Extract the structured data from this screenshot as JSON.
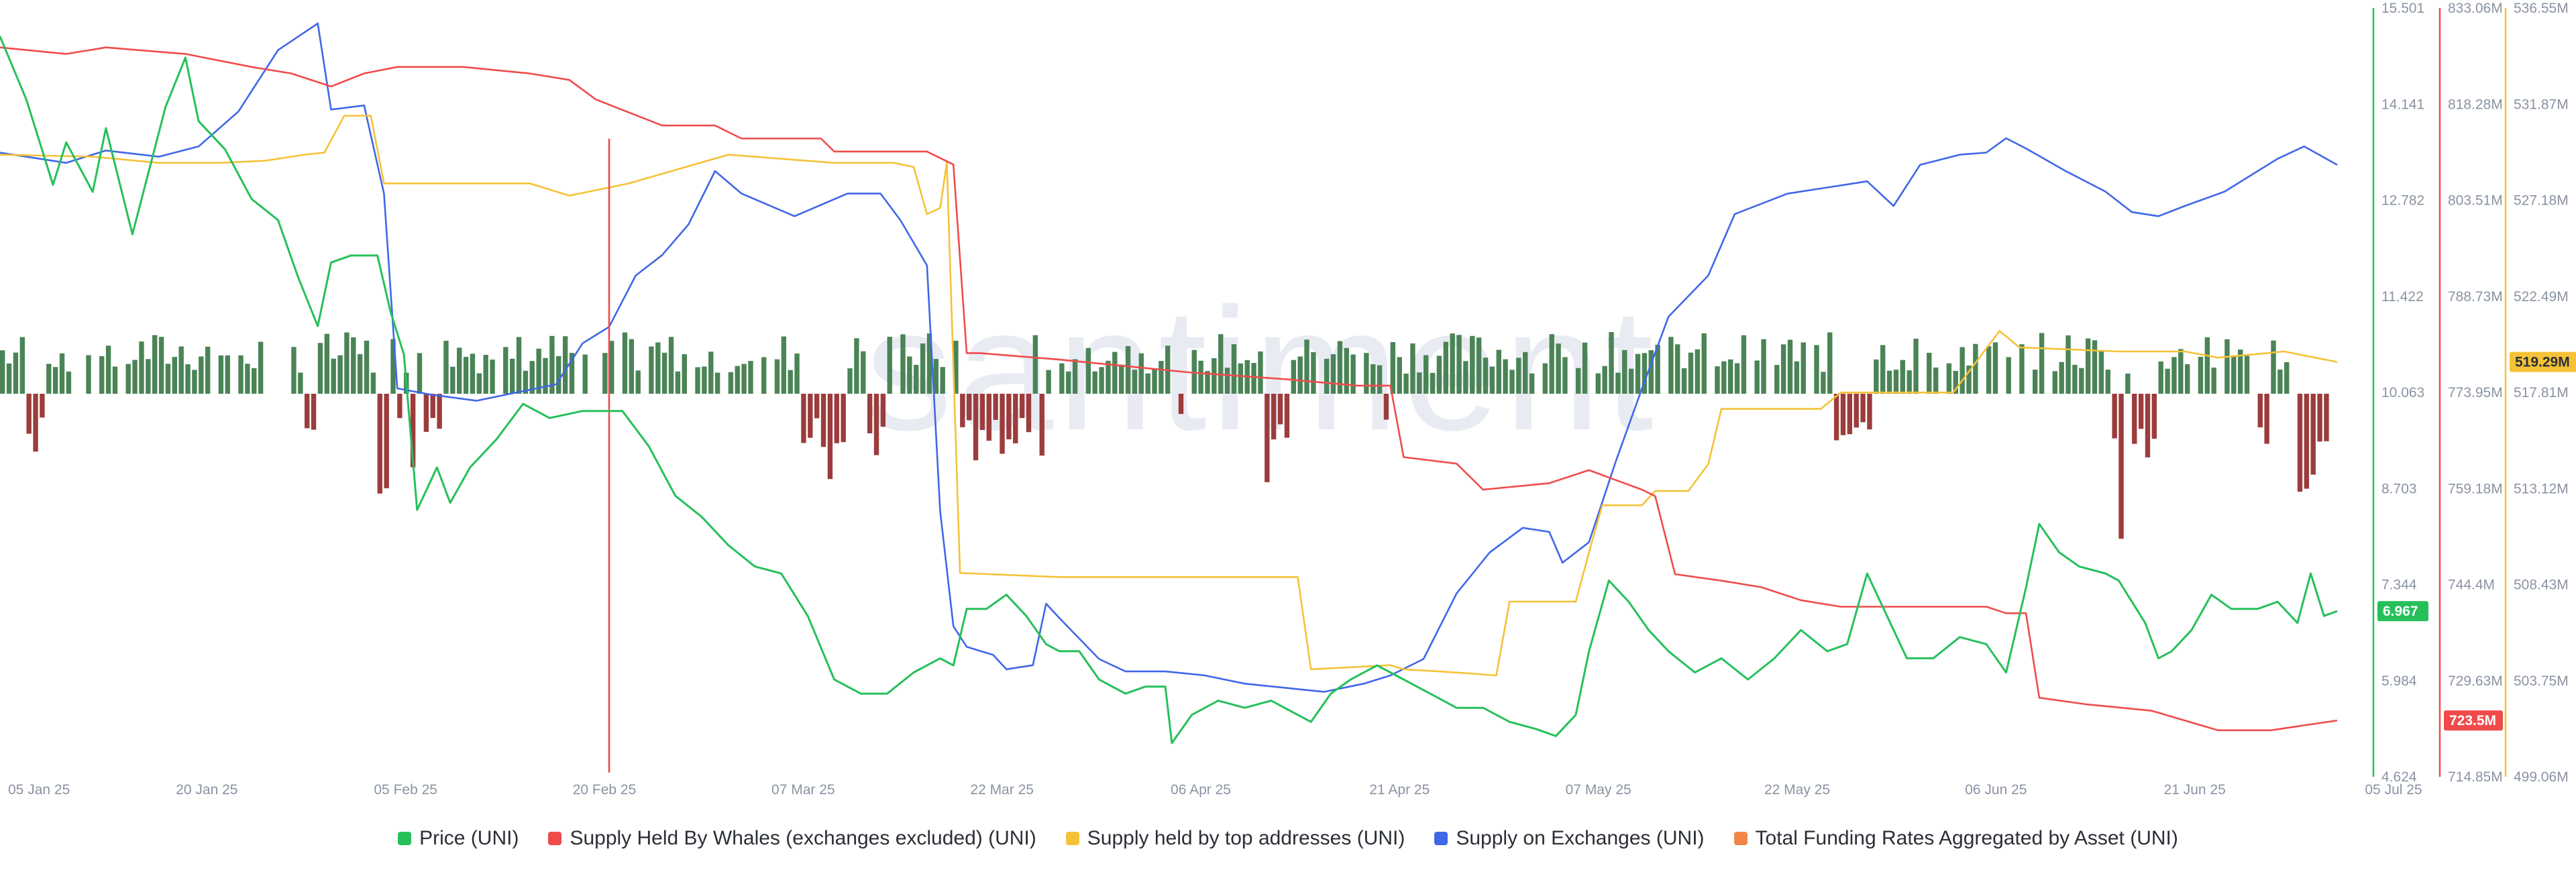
{
  "chart_data": {
    "type": "line",
    "watermark": "santiment",
    "x_ticks": [
      "05 Jan 25",
      "20 Jan 25",
      "05 Feb 25",
      "20 Feb 25",
      "07 Mar 25",
      "22 Mar 25",
      "06 Apr 25",
      "21 Apr 25",
      "07 May 25",
      "22 May 25",
      "06 Jun 25",
      "21 Jun 25",
      "05 Jul 25"
    ],
    "x_start": "2025-01-05",
    "x_end": "2025-07-05",
    "axes": {
      "price": {
        "ticks": [
          "15.501",
          "14.141",
          "12.782",
          "11.422",
          "10.063",
          "8.703",
          "7.344",
          "5.984",
          "4.624"
        ],
        "ylim": [
          4.624,
          15.501
        ],
        "current_label": "6.967",
        "color": "#26c05b"
      },
      "whales": {
        "ticks": [
          "833.06M",
          "818.28M",
          "803.51M",
          "788.73M",
          "773.95M",
          "759.18M",
          "744.4M",
          "729.63M",
          "714.85M"
        ],
        "ylim": [
          714.85,
          833.06
        ],
        "current_label": "723.5M",
        "color": "#ef4b4b"
      },
      "top": {
        "ticks": [
          "536.55M",
          "531.87M",
          "527.18M",
          "522.49M",
          "517.81M",
          "513.12M",
          "508.43M",
          "503.75M",
          "499.06M"
        ],
        "ylim": [
          499.06,
          536.55
        ],
        "current_label": "519.29M",
        "color": "#f5c237"
      }
    },
    "series": [
      {
        "name": "Price (UNI)",
        "color": "#26c05b",
        "axis": "price",
        "points": [
          [
            0,
            15.1
          ],
          [
            4,
            14.2
          ],
          [
            8,
            13.0
          ],
          [
            10,
            13.6
          ],
          [
            14,
            12.9
          ],
          [
            16,
            13.8
          ],
          [
            20,
            12.3
          ],
          [
            25,
            14.1
          ],
          [
            28,
            14.8
          ],
          [
            30,
            13.9
          ],
          [
            34,
            13.5
          ],
          [
            38,
            12.8
          ],
          [
            42,
            12.5
          ],
          [
            45,
            11.7
          ],
          [
            48,
            11.0
          ],
          [
            50,
            11.9
          ],
          [
            53,
            12.0
          ],
          [
            57,
            12.0
          ],
          [
            59,
            11.2
          ],
          [
            61,
            10.6
          ],
          [
            63,
            8.4
          ],
          [
            66,
            9.0
          ],
          [
            68,
            8.5
          ],
          [
            71,
            9.0
          ],
          [
            75,
            9.4
          ],
          [
            79,
            9.9
          ],
          [
            83,
            9.7
          ],
          [
            88,
            9.8
          ],
          [
            94,
            9.8
          ],
          [
            98,
            9.3
          ],
          [
            102,
            8.6
          ],
          [
            106,
            8.3
          ],
          [
            110,
            7.9
          ],
          [
            114,
            7.6
          ],
          [
            118,
            7.5
          ],
          [
            122,
            6.9
          ],
          [
            126,
            6.0
          ],
          [
            130,
            5.8
          ],
          [
            134,
            5.8
          ],
          [
            138,
            6.1
          ],
          [
            142,
            6.3
          ],
          [
            144,
            6.2
          ],
          [
            146,
            7.0
          ],
          [
            149,
            7.0
          ],
          [
            152,
            7.2
          ],
          [
            155,
            6.9
          ],
          [
            158,
            6.5
          ],
          [
            160,
            6.4
          ],
          [
            163,
            6.4
          ],
          [
            166,
            6.0
          ],
          [
            170,
            5.8
          ],
          [
            173,
            5.9
          ],
          [
            176,
            5.9
          ],
          [
            177,
            5.1
          ],
          [
            180,
            5.5
          ],
          [
            184,
            5.7
          ],
          [
            188,
            5.6
          ],
          [
            192,
            5.7
          ],
          [
            196,
            5.5
          ],
          [
            198,
            5.4
          ],
          [
            201,
            5.8
          ],
          [
            204,
            6.0
          ],
          [
            208,
            6.2
          ],
          [
            212,
            6.0
          ],
          [
            216,
            5.8
          ],
          [
            220,
            5.6
          ],
          [
            224,
            5.6
          ],
          [
            228,
            5.4
          ],
          [
            232,
            5.3
          ],
          [
            235,
            5.2
          ],
          [
            238,
            5.5
          ],
          [
            240,
            6.4
          ],
          [
            243,
            7.4
          ],
          [
            246,
            7.1
          ],
          [
            249,
            6.7
          ],
          [
            252,
            6.4
          ],
          [
            256,
            6.1
          ],
          [
            260,
            6.3
          ],
          [
            264,
            6.0
          ],
          [
            268,
            6.3
          ],
          [
            272,
            6.7
          ],
          [
            276,
            6.4
          ],
          [
            279,
            6.5
          ],
          [
            282,
            7.5
          ],
          [
            285,
            6.9
          ],
          [
            288,
            6.3
          ],
          [
            292,
            6.3
          ],
          [
            296,
            6.6
          ],
          [
            300,
            6.5
          ],
          [
            303,
            6.1
          ],
          [
            306,
            7.3
          ],
          [
            308,
            8.2
          ],
          [
            311,
            7.8
          ],
          [
            314,
            7.6
          ],
          [
            318,
            7.5
          ],
          [
            320,
            7.4
          ],
          [
            324,
            6.8
          ],
          [
            326,
            6.3
          ],
          [
            328,
            6.4
          ],
          [
            331,
            6.7
          ],
          [
            334,
            7.2
          ],
          [
            337,
            7.0
          ],
          [
            341,
            7.0
          ],
          [
            344,
            7.1
          ],
          [
            347,
            6.8
          ],
          [
            349,
            7.5
          ],
          [
            351,
            6.9
          ],
          [
            353,
            6.967
          ]
        ]
      },
      {
        "name": "Supply Held By Whales (exchanges excluded) (UNI)",
        "color": "#ef4b4b",
        "axis": "whales",
        "points": [
          [
            0,
            827.0
          ],
          [
            10,
            826.0
          ],
          [
            16,
            827.0
          ],
          [
            28,
            826.0
          ],
          [
            38,
            824.0
          ],
          [
            44,
            823.0
          ],
          [
            50,
            821.0
          ],
          [
            55,
            823.0
          ],
          [
            60,
            824.0
          ],
          [
            70,
            824.0
          ],
          [
            80,
            823.0
          ],
          [
            86,
            822.0
          ],
          [
            90,
            819.0
          ],
          [
            95,
            817.0
          ],
          [
            100,
            815.0
          ],
          [
            108,
            815.0
          ],
          [
            112,
            813.0
          ],
          [
            124,
            813.0
          ],
          [
            126,
            811.0
          ],
          [
            140,
            811.0
          ],
          [
            144,
            809.0
          ],
          [
            146,
            780.0
          ],
          [
            148,
            780.0
          ],
          [
            160,
            779.0
          ],
          [
            170,
            778.0
          ],
          [
            180,
            777.0
          ],
          [
            194,
            776.0
          ],
          [
            205,
            775.0
          ],
          [
            210,
            775.0
          ],
          [
            212,
            764.0
          ],
          [
            220,
            763.0
          ],
          [
            224,
            759.0
          ],
          [
            234,
            760.0
          ],
          [
            240,
            762.0
          ],
          [
            248,
            759.0
          ],
          [
            250,
            758.0
          ],
          [
            253,
            746.0
          ],
          [
            260,
            745.0
          ],
          [
            266,
            744.0
          ],
          [
            272,
            742.0
          ],
          [
            278,
            741.0
          ],
          [
            290,
            741.0
          ],
          [
            300,
            741.0
          ],
          [
            303,
            740.0
          ],
          [
            306,
            740.0
          ],
          [
            308,
            727.0
          ],
          [
            315,
            726.0
          ],
          [
            325,
            725.0
          ],
          [
            335,
            722.0
          ],
          [
            343,
            722.0
          ],
          [
            353,
            723.5
          ]
        ],
        "spike": {
          "x": 92,
          "value": 715.5
        }
      },
      {
        "name": "Supply held by top addresses (UNI)",
        "color": "#f5c237",
        "axis": "top",
        "points": [
          [
            0,
            529.4
          ],
          [
            14,
            529.3
          ],
          [
            24,
            529.0
          ],
          [
            33,
            529.0
          ],
          [
            40,
            529.1
          ],
          [
            46,
            529.4
          ],
          [
            49,
            529.5
          ],
          [
            52,
            531.3
          ],
          [
            56,
            531.3
          ],
          [
            58,
            528.0
          ],
          [
            80,
            528.0
          ],
          [
            86,
            527.4
          ],
          [
            95,
            528.0
          ],
          [
            110,
            529.4
          ],
          [
            126,
            529.0
          ],
          [
            135,
            529.0
          ],
          [
            138,
            528.8
          ],
          [
            140,
            526.5
          ],
          [
            142,
            526.8
          ],
          [
            143,
            529.0
          ],
          [
            145,
            509.0
          ],
          [
            160,
            508.8
          ],
          [
            170,
            508.8
          ],
          [
            196,
            508.8
          ],
          [
            198,
            504.3
          ],
          [
            210,
            504.5
          ],
          [
            212,
            504.3
          ],
          [
            222,
            504.1
          ],
          [
            226,
            504.0
          ],
          [
            228,
            507.6
          ],
          [
            236,
            507.6
          ],
          [
            238,
            507.6
          ],
          [
            240,
            510.0
          ],
          [
            242,
            512.3
          ],
          [
            248,
            512.3
          ],
          [
            250,
            513.0
          ],
          [
            255,
            513.0
          ],
          [
            258,
            514.3
          ],
          [
            260,
            517.0
          ],
          [
            275,
            517.0
          ],
          [
            278,
            517.8
          ],
          [
            295,
            517.8
          ],
          [
            302,
            520.8
          ],
          [
            305,
            520.0
          ],
          [
            320,
            519.8
          ],
          [
            330,
            519.8
          ],
          [
            335,
            519.5
          ],
          [
            345,
            519.8
          ],
          [
            353,
            519.29
          ]
        ]
      },
      {
        "name": "Supply on Exchanges (UNI)",
        "color": "#3f67e8",
        "axis": "top",
        "points": [
          [
            0,
            529.5
          ],
          [
            10,
            529.0
          ],
          [
            16,
            529.6
          ],
          [
            24,
            529.3
          ],
          [
            30,
            529.8
          ],
          [
            36,
            531.5
          ],
          [
            42,
            534.5
          ],
          [
            48,
            535.8
          ],
          [
            50,
            531.6
          ],
          [
            55,
            531.8
          ],
          [
            58,
            527.5
          ],
          [
            60,
            518.0
          ],
          [
            65,
            517.7
          ],
          [
            72,
            517.4
          ],
          [
            84,
            518.2
          ],
          [
            88,
            520.2
          ],
          [
            92,
            521.0
          ],
          [
            96,
            523.5
          ],
          [
            100,
            524.5
          ],
          [
            104,
            526.0
          ],
          [
            108,
            528.6
          ],
          [
            112,
            527.5
          ],
          [
            120,
            526.4
          ],
          [
            128,
            527.5
          ],
          [
            133,
            527.5
          ],
          [
            136,
            526.2
          ],
          [
            140,
            524.0
          ],
          [
            142,
            512.0
          ],
          [
            144,
            506.4
          ],
          [
            146,
            505.4
          ],
          [
            150,
            505.0
          ],
          [
            152,
            504.3
          ],
          [
            156,
            504.5
          ],
          [
            158,
            507.5
          ],
          [
            160,
            506.8
          ],
          [
            166,
            504.8
          ],
          [
            170,
            504.2
          ],
          [
            176,
            504.2
          ],
          [
            182,
            504.0
          ],
          [
            188,
            503.6
          ],
          [
            194,
            503.4
          ],
          [
            200,
            503.2
          ],
          [
            206,
            503.6
          ],
          [
            210,
            504.0
          ],
          [
            215,
            504.8
          ],
          [
            220,
            508.0
          ],
          [
            225,
            510.0
          ],
          [
            230,
            511.2
          ],
          [
            234,
            511.0
          ],
          [
            236,
            509.5
          ],
          [
            240,
            510.5
          ],
          [
            244,
            514.4
          ],
          [
            248,
            518.0
          ],
          [
            252,
            521.5
          ],
          [
            258,
            523.5
          ],
          [
            262,
            526.5
          ],
          [
            270,
            527.5
          ],
          [
            276,
            527.8
          ],
          [
            282,
            528.1
          ],
          [
            286,
            526.9
          ],
          [
            290,
            528.9
          ],
          [
            296,
            529.4
          ],
          [
            300,
            529.5
          ],
          [
            303,
            530.2
          ],
          [
            306,
            529.7
          ],
          [
            312,
            528.6
          ],
          [
            318,
            527.6
          ],
          [
            322,
            526.6
          ],
          [
            326,
            526.4
          ],
          [
            330,
            526.9
          ],
          [
            336,
            527.6
          ],
          [
            340,
            528.4
          ],
          [
            344,
            529.2
          ],
          [
            348,
            529.8
          ],
          [
            353,
            528.9
          ]
        ]
      }
    ],
    "funding_bars_note": "Total Funding Rates Aggregated by Asset (UNI)",
    "legend": [
      {
        "label": "Price (UNI)",
        "color": "#26c05b"
      },
      {
        "label": "Supply Held By Whales (exchanges excluded) (UNI)",
        "color": "#ef4b4b"
      },
      {
        "label": "Supply held by top addresses (UNI)",
        "color": "#f5c237"
      },
      {
        "label": "Supply on Exchanges (UNI)",
        "color": "#3f67e8"
      },
      {
        "label": "Total Funding Rates Aggregated by Asset (UNI)",
        "color": "#f2864a"
      }
    ],
    "grid": false,
    "legend_position": "bottom"
  }
}
